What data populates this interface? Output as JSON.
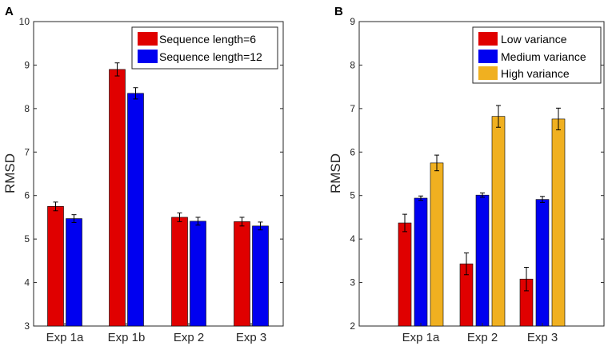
{
  "chart_data": [
    {
      "panel_label": "A",
      "type": "bar",
      "ylabel": "RMSD",
      "xlabel": "",
      "ylim": [
        3,
        10
      ],
      "yticks": [
        3,
        4,
        5,
        6,
        7,
        8,
        9,
        10
      ],
      "categories": [
        "Exp 1a",
        "Exp 1b",
        "Exp 2",
        "Exp 3"
      ],
      "legend_position": "top-right",
      "series": [
        {
          "name": "Sequence length=6",
          "color": "#e00000",
          "values": [
            5.75,
            8.9,
            5.5,
            5.4
          ],
          "errors": [
            0.1,
            0.15,
            0.1,
            0.1
          ]
        },
        {
          "name": "Sequence length=12",
          "color": "#0000f0",
          "values": [
            5.47,
            8.35,
            5.41,
            5.3
          ],
          "errors": [
            0.09,
            0.13,
            0.09,
            0.09
          ]
        }
      ]
    },
    {
      "panel_label": "B",
      "type": "bar",
      "ylabel": "RMSD",
      "xlabel": "",
      "ylim": [
        2,
        9
      ],
      "yticks": [
        2,
        3,
        4,
        5,
        6,
        7,
        8,
        9
      ],
      "categories": [
        "Exp 1a",
        "Exp 2",
        "Exp 3"
      ],
      "legend_position": "top-left",
      "series": [
        {
          "name": "Low variance",
          "color": "#e00000",
          "values": [
            4.37,
            3.43,
            3.08
          ],
          "errors": [
            0.2,
            0.25,
            0.27
          ]
        },
        {
          "name": "Medium variance",
          "color": "#0000f0",
          "values": [
            4.94,
            5.01,
            4.91
          ],
          "errors": [
            0.05,
            0.05,
            0.07
          ]
        },
        {
          "name": "High variance",
          "color": "#f0b020",
          "values": [
            5.75,
            6.82,
            6.76
          ],
          "errors": [
            0.18,
            0.25,
            0.25
          ]
        }
      ]
    }
  ]
}
